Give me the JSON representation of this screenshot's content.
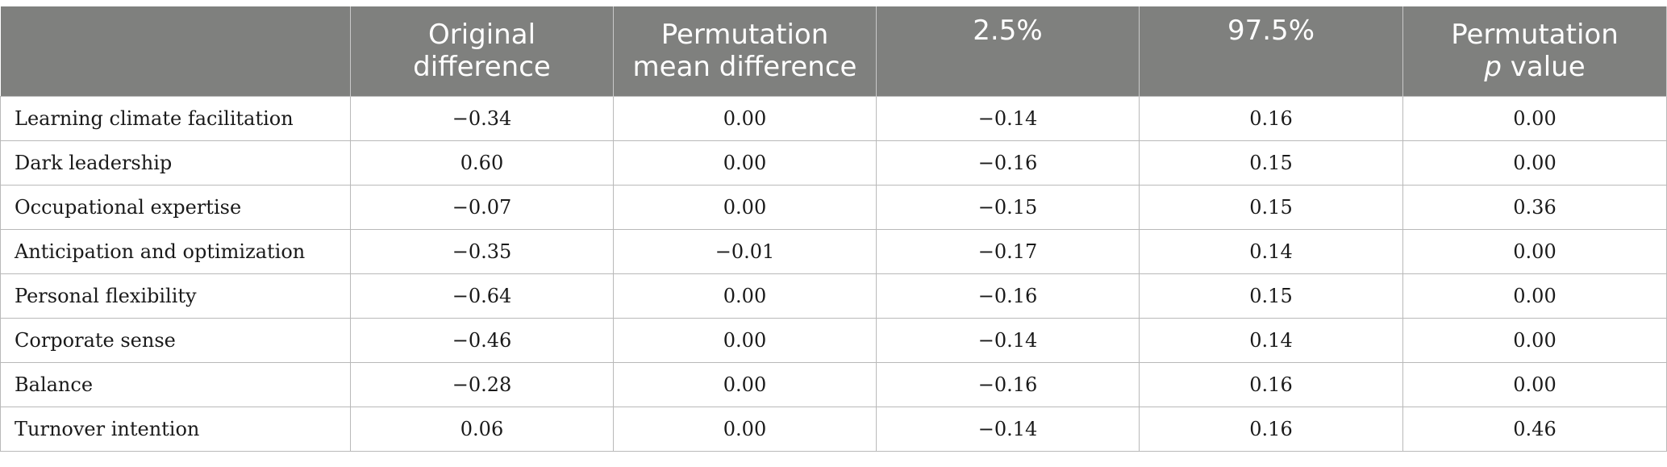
{
  "table": {
    "headers": [
      {
        "line1": "",
        "line2": ""
      },
      {
        "line1": "Original",
        "line2": "difference"
      },
      {
        "line1": "Permutation",
        "line2": "mean difference"
      },
      {
        "line1": "2.5%",
        "line2": ""
      },
      {
        "line1": "97.5%",
        "line2": ""
      },
      {
        "line1": "Permutation",
        "line2_italic": "p",
        "line2": " value"
      }
    ],
    "rows": [
      {
        "label": "Learning climate facilitation",
        "values": [
          "−0.34",
          "0.00",
          "−0.14",
          "0.16",
          "0.00"
        ]
      },
      {
        "label": "Dark leadership",
        "values": [
          "0.60",
          "0.00",
          "−0.16",
          "0.15",
          "0.00"
        ]
      },
      {
        "label": "Occupational expertise",
        "values": [
          "−0.07",
          "0.00",
          "−0.15",
          "0.15",
          "0.36"
        ]
      },
      {
        "label": "Anticipation and optimization",
        "values": [
          "−0.35",
          "−0.01",
          "−0.17",
          "0.14",
          "0.00"
        ]
      },
      {
        "label": "Personal flexibility",
        "values": [
          "−0.64",
          "0.00",
          "−0.16",
          "0.15",
          "0.00"
        ]
      },
      {
        "label": "Corporate sense",
        "values": [
          "−0.46",
          "0.00",
          "−0.14",
          "0.14",
          "0.00"
        ]
      },
      {
        "label": "Balance",
        "values": [
          "−0.28",
          "0.00",
          "−0.16",
          "0.16",
          "0.00"
        ]
      },
      {
        "label": "Turnover intention",
        "values": [
          "0.06",
          "0.00",
          "−0.14",
          "0.16",
          "0.46"
        ]
      }
    ]
  },
  "colors": {
    "header_bg": "#7f807e",
    "header_text": "#ffffff",
    "grid": "#b9b9b9"
  }
}
